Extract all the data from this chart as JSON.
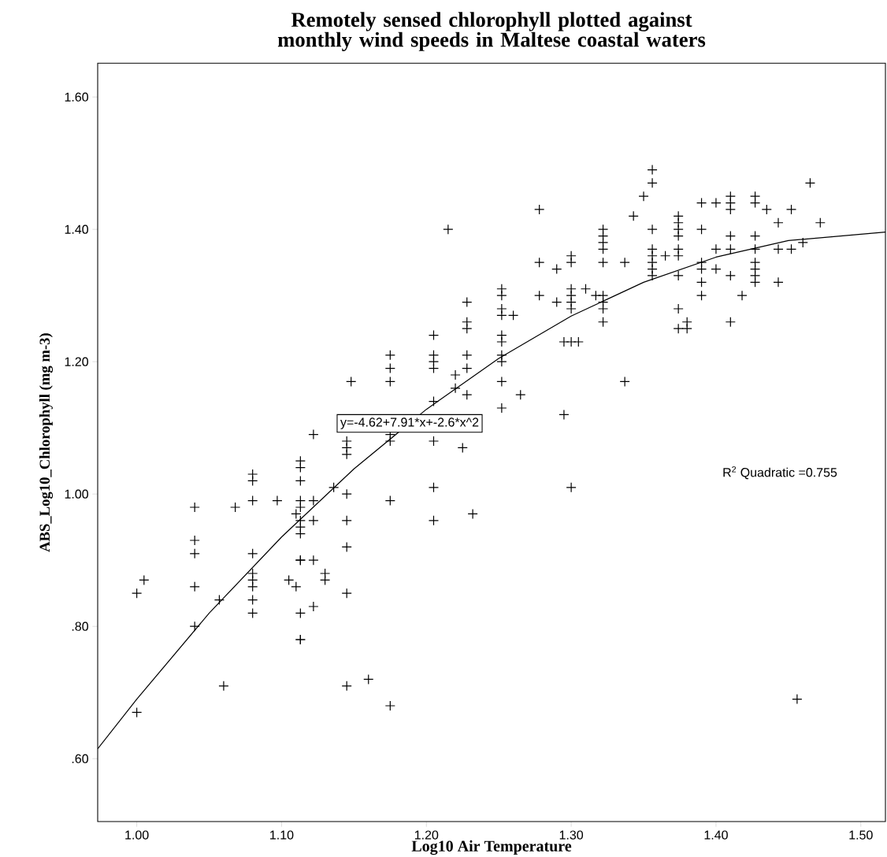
{
  "chart_data": {
    "type": "scatter",
    "title": "Remotely sensed chlorophyll plotted against monthly wind speeds in Maltese coastal waters",
    "xlabel": "Log10  Air  Temperature",
    "ylabel": "ABS_Log10_Chlorophyll (mg m-3)",
    "xlim": [
      0.973,
      1.517
    ],
    "ylim": [
      0.505,
      1.651
    ],
    "xticks": [
      {
        "value": 1.0,
        "label": "1.00"
      },
      {
        "value": 1.1,
        "label": "1.10"
      },
      {
        "value": 1.2,
        "label": "1.20"
      },
      {
        "value": 1.3,
        "label": "1.30"
      },
      {
        "value": 1.4,
        "label": "1.40"
      },
      {
        "value": 1.5,
        "label": "1.50"
      }
    ],
    "yticks": [
      {
        "value": 0.6,
        "label": ".60"
      },
      {
        "value": 0.8,
        "label": ".80"
      },
      {
        "value": 1.0,
        "label": "1.00"
      },
      {
        "value": 1.2,
        "label": "1.20"
      },
      {
        "value": 1.4,
        "label": "1.40"
      },
      {
        "value": 1.6,
        "label": "1.60"
      }
    ],
    "annotations": [
      "y=-4.62+7.91*x+-2.6*x^2",
      "R$^{2}$ Quadratic =0.755"
    ],
    "series": [
      {
        "color": "#000000",
        "marker": "cross",
        "x": [
          1.0,
          1.0,
          1.005,
          1.04,
          1.04,
          1.04,
          1.04,
          1.04,
          1.057,
          1.06,
          1.068,
          1.08,
          1.08,
          1.08,
          1.08,
          1.08,
          1.08,
          1.08,
          1.08,
          1.08,
          1.097,
          1.105,
          1.11,
          1.11,
          1.113,
          1.113,
          1.113,
          1.113,
          1.113,
          1.113,
          1.113,
          1.113,
          1.113,
          1.113,
          1.113,
          1.113,
          1.113,
          1.122,
          1.122,
          1.122,
          1.122,
          1.122,
          1.13,
          1.13,
          1.136,
          1.145,
          1.145,
          1.145,
          1.145,
          1.145,
          1.145,
          1.145,
          1.145,
          1.148,
          1.16,
          1.175,
          1.175,
          1.175,
          1.175,
          1.175,
          1.175,
          1.175,
          1.205,
          1.205,
          1.205,
          1.205,
          1.205,
          1.205,
          1.205,
          1.205,
          1.215,
          1.22,
          1.22,
          1.225,
          1.228,
          1.228,
          1.228,
          1.228,
          1.228,
          1.228,
          1.232,
          1.252,
          1.252,
          1.252,
          1.252,
          1.252,
          1.252,
          1.252,
          1.252,
          1.252,
          1.252,
          1.26,
          1.265,
          1.278,
          1.278,
          1.278,
          1.29,
          1.29,
          1.295,
          1.295,
          1.3,
          1.3,
          1.3,
          1.3,
          1.3,
          1.3,
          1.3,
          1.3,
          1.305,
          1.31,
          1.317,
          1.322,
          1.322,
          1.322,
          1.322,
          1.322,
          1.322,
          1.322,
          1.322,
          1.322,
          1.337,
          1.337,
          1.343,
          1.35,
          1.356,
          1.356,
          1.356,
          1.356,
          1.356,
          1.356,
          1.356,
          1.356,
          1.365,
          1.374,
          1.374,
          1.374,
          1.374,
          1.374,
          1.374,
          1.374,
          1.374,
          1.374,
          1.38,
          1.38,
          1.39,
          1.39,
          1.39,
          1.39,
          1.39,
          1.39,
          1.4,
          1.4,
          1.4,
          1.41,
          1.41,
          1.41,
          1.41,
          1.41,
          1.41,
          1.41,
          1.418,
          1.427,
          1.427,
          1.427,
          1.427,
          1.427,
          1.427,
          1.427,
          1.427,
          1.435,
          1.443,
          1.443,
          1.443,
          1.452,
          1.452,
          1.456,
          1.46,
          1.465,
          1.472
        ],
        "values": [
          0.85,
          0.67,
          0.87,
          0.98,
          0.93,
          0.91,
          0.86,
          0.8,
          0.84,
          0.71,
          0.98,
          1.03,
          1.02,
          0.99,
          0.91,
          0.88,
          0.87,
          0.86,
          0.84,
          0.82,
          0.99,
          0.87,
          0.97,
          0.86,
          1.05,
          1.04,
          1.02,
          0.99,
          0.98,
          0.96,
          0.95,
          0.94,
          0.9,
          0.9,
          0.82,
          0.78,
          0.78,
          1.09,
          0.99,
          0.96,
          0.9,
          0.83,
          0.88,
          0.87,
          1.01,
          1.08,
          1.07,
          1.06,
          1.0,
          0.96,
          0.92,
          0.85,
          0.71,
          1.17,
          0.72,
          1.21,
          1.19,
          1.17,
          1.09,
          1.08,
          0.99,
          0.68,
          1.24,
          1.21,
          1.2,
          1.19,
          1.14,
          1.08,
          1.01,
          0.96,
          1.4,
          1.18,
          1.16,
          1.07,
          1.29,
          1.26,
          1.25,
          1.21,
          1.19,
          1.15,
          0.97,
          1.31,
          1.3,
          1.28,
          1.27,
          1.24,
          1.23,
          1.21,
          1.2,
          1.17,
          1.13,
          1.27,
          1.15,
          1.43,
          1.35,
          1.3,
          1.34,
          1.29,
          1.23,
          1.12,
          1.36,
          1.35,
          1.31,
          1.3,
          1.29,
          1.28,
          1.23,
          1.01,
          1.23,
          1.31,
          1.3,
          1.4,
          1.39,
          1.38,
          1.37,
          1.35,
          1.3,
          1.29,
          1.28,
          1.26,
          1.35,
          1.17,
          1.42,
          1.45,
          1.49,
          1.47,
          1.4,
          1.37,
          1.36,
          1.35,
          1.34,
          1.33,
          1.36,
          1.42,
          1.41,
          1.4,
          1.39,
          1.37,
          1.36,
          1.33,
          1.28,
          1.25,
          1.26,
          1.25,
          1.44,
          1.4,
          1.35,
          1.34,
          1.32,
          1.3,
          1.44,
          1.37,
          1.34,
          1.45,
          1.44,
          1.43,
          1.39,
          1.37,
          1.33,
          1.26,
          1.3,
          1.45,
          1.44,
          1.39,
          1.37,
          1.35,
          1.34,
          1.33,
          1.32,
          1.43,
          1.41,
          1.37,
          1.32,
          1.43,
          1.37,
          0.69,
          1.38,
          1.47,
          1.41
        ]
      },
      {
        "type": "line",
        "color": "#000000",
        "marker": "none",
        "line_style": "solid",
        "x": [
          0.973,
          1.0,
          1.05,
          1.1,
          1.15,
          1.2,
          1.25,
          1.3,
          1.35,
          1.4,
          1.45,
          1.517
        ],
        "values": [
          0.615,
          0.69,
          0.82,
          0.935,
          1.038,
          1.128,
          1.205,
          1.269,
          1.32,
          1.358,
          1.383,
          1.396
        ]
      }
    ]
  }
}
